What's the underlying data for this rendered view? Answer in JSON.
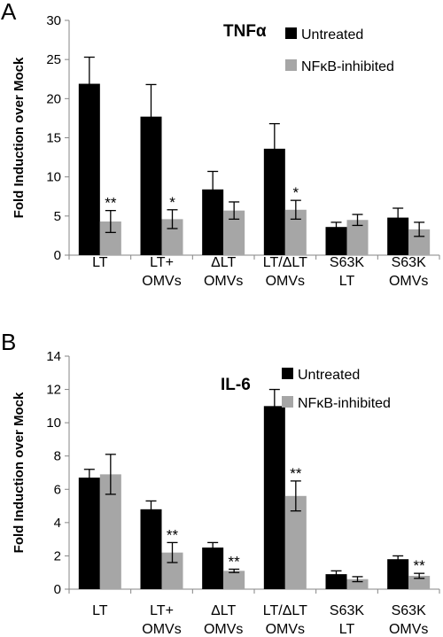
{
  "colors": {
    "untreated": "#000000",
    "inhibited": "#a6a6a6",
    "axis": "#868686"
  },
  "chart_data": [
    {
      "type": "bar",
      "panel": "A",
      "title": "TNFα",
      "ylabel": "Fold Induction over Mock",
      "xlabel": "",
      "ylim": [
        0,
        30
      ],
      "yticks": [
        0,
        5,
        10,
        15,
        20,
        25,
        30
      ],
      "legend_placement": "top-right",
      "categories": [
        [
          "LT"
        ],
        [
          "LT+",
          "OMVs"
        ],
        [
          "ΔLT",
          "OMVs"
        ],
        [
          "LT/ΔLT",
          "OMVs"
        ],
        [
          "S63K",
          "LT"
        ],
        [
          "S63K",
          "OMVs"
        ]
      ],
      "series": [
        {
          "name": "Untreated",
          "values": [
            21.9,
            17.7,
            8.4,
            13.6,
            3.6,
            4.8
          ],
          "errors": [
            3.4,
            4.1,
            2.3,
            3.2,
            0.6,
            1.2
          ]
        },
        {
          "name": "NFκB-inhibited",
          "values": [
            4.3,
            4.6,
            5.7,
            5.8,
            4.5,
            3.3
          ],
          "errors": [
            1.4,
            1.2,
            1.1,
            1.2,
            0.7,
            0.9
          ]
        }
      ],
      "annotations": [
        "**",
        "*",
        "",
        "*",
        "",
        ""
      ]
    },
    {
      "type": "bar",
      "panel": "B",
      "title": "IL-6",
      "ylabel": "Fold Induction over Mock",
      "xlabel": "",
      "ylim": [
        0,
        14
      ],
      "yticks": [
        0,
        2,
        4,
        6,
        8,
        10,
        12,
        14
      ],
      "legend_placement": "top-right",
      "categories": [
        [
          "LT"
        ],
        [
          "LT+",
          "OMVs"
        ],
        [
          "ΔLT",
          "OMVs"
        ],
        [
          "LT/ΔLT",
          "OMVs"
        ],
        [
          "S63K",
          "LT"
        ],
        [
          "S63K",
          "OMVs"
        ]
      ],
      "series": [
        {
          "name": "Untreated",
          "values": [
            6.7,
            4.8,
            2.5,
            11.0,
            0.9,
            1.8
          ],
          "errors": [
            0.5,
            0.5,
            0.3,
            1.0,
            0.2,
            0.2
          ]
        },
        {
          "name": "NFκB-inhibited",
          "values": [
            6.9,
            2.2,
            1.1,
            5.6,
            0.6,
            0.8
          ],
          "errors": [
            1.2,
            0.6,
            0.1,
            0.9,
            0.15,
            0.15
          ]
        }
      ],
      "annotations": [
        "",
        "**",
        "**",
        "**",
        "",
        "**"
      ]
    }
  ]
}
